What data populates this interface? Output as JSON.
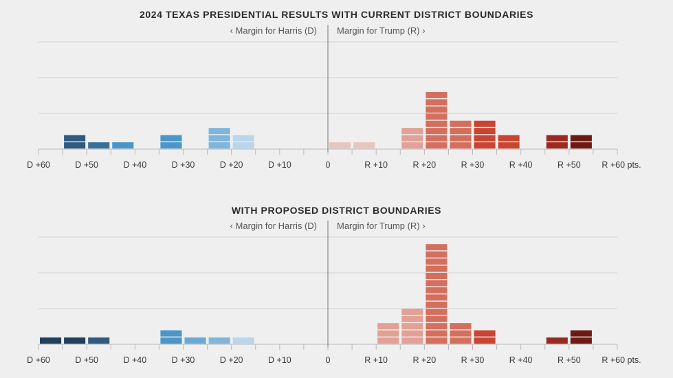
{
  "colors": {
    "background": "#efefef",
    "grid": "#d0d0d0",
    "axis": "#b8b8b8",
    "divider": "#777777",
    "dem": [
      "#1f3f5e",
      "#2e5a80",
      "#4a96c8",
      "#7fb5dc",
      "#b8d6ec"
    ],
    "rep": [
      "#e7c6c0",
      "#e2a196",
      "#d46f5e",
      "#c94531",
      "#9a2a1f",
      "#6e1a14"
    ]
  },
  "chart_data": [
    {
      "type": "bar",
      "title": "2024 TEXAS PRESIDENTIAL RESULTS WITH CURRENT DISTRICT BOUNDARIES",
      "left_label": "‹ Margin for Harris (D)",
      "right_label": "Margin for Trump (R) ›",
      "xlim": [
        -60,
        60
      ],
      "ticks": [
        {
          "value": -60,
          "label": "D +60"
        },
        {
          "value": -50,
          "label": "D +50"
        },
        {
          "value": -40,
          "label": "D +40"
        },
        {
          "value": -30,
          "label": "D +30"
        },
        {
          "value": -20,
          "label": "D +20"
        },
        {
          "value": -10,
          "label": "D +10"
        },
        {
          "value": 0,
          "label": "0"
        },
        {
          "value": 10,
          "label": "R +10"
        },
        {
          "value": 20,
          "label": "R +20"
        },
        {
          "value": 30,
          "label": "R +30"
        },
        {
          "value": 40,
          "label": "R +40"
        },
        {
          "value": 50,
          "label": "R +50"
        },
        {
          "value": 60,
          "label": "R +60 pts."
        }
      ],
      "bins": [
        {
          "x": -52.5,
          "count": 2,
          "color": "#2e5a80"
        },
        {
          "x": -47.5,
          "count": 1,
          "color": "#3b6f98"
        },
        {
          "x": -42.5,
          "count": 1,
          "color": "#4a96c8"
        },
        {
          "x": -32.5,
          "count": 2,
          "color": "#4a96c8"
        },
        {
          "x": -22.5,
          "count": 3,
          "color": "#7fb5dc"
        },
        {
          "x": -17.5,
          "count": 2,
          "color": "#b8d6ec"
        },
        {
          "x": 2.5,
          "count": 1,
          "color": "#e7c6c0"
        },
        {
          "x": 7.5,
          "count": 1,
          "color": "#e7c6c0"
        },
        {
          "x": 17.5,
          "count": 3,
          "color": "#e2a196"
        },
        {
          "x": 22.5,
          "count": 8,
          "color": "#d46f5e"
        },
        {
          "x": 27.5,
          "count": 4,
          "color": "#d46f5e"
        },
        {
          "x": 32.5,
          "count": 4,
          "color": "#c94531"
        },
        {
          "x": 37.5,
          "count": 2,
          "color": "#c94531"
        },
        {
          "x": 47.5,
          "count": 2,
          "color": "#9a2a1f"
        },
        {
          "x": 52.5,
          "count": 2,
          "color": "#6e1a14"
        }
      ]
    },
    {
      "type": "bar",
      "title": "WITH PROPOSED DISTRICT BOUNDARIES",
      "left_label": "‹ Margin for Harris (D)",
      "right_label": "Margin for Trump (R) ›",
      "xlim": [
        -60,
        60
      ],
      "ticks": [
        {
          "value": -60,
          "label": "D +60"
        },
        {
          "value": -50,
          "label": "D +50"
        },
        {
          "value": -40,
          "label": "D +40"
        },
        {
          "value": -30,
          "label": "D +30"
        },
        {
          "value": -20,
          "label": "D +20"
        },
        {
          "value": -10,
          "label": "D +10"
        },
        {
          "value": 0,
          "label": "0"
        },
        {
          "value": 10,
          "label": "R +10"
        },
        {
          "value": 20,
          "label": "R +20"
        },
        {
          "value": 30,
          "label": "R +30"
        },
        {
          "value": 40,
          "label": "R +40"
        },
        {
          "value": 50,
          "label": "R +50"
        },
        {
          "value": 60,
          "label": "R +60 pts."
        }
      ],
      "bins": [
        {
          "x": -57.5,
          "count": 1,
          "color": "#1f3f5e"
        },
        {
          "x": -52.5,
          "count": 1,
          "color": "#1f3f5e"
        },
        {
          "x": -47.5,
          "count": 1,
          "color": "#2e5a80"
        },
        {
          "x": -32.5,
          "count": 2,
          "color": "#4a96c8"
        },
        {
          "x": -27.5,
          "count": 1,
          "color": "#6aa8d6"
        },
        {
          "x": -22.5,
          "count": 1,
          "color": "#7fb5dc"
        },
        {
          "x": -17.5,
          "count": 1,
          "color": "#b8d6ec"
        },
        {
          "x": 12.5,
          "count": 3,
          "color": "#e2a196"
        },
        {
          "x": 17.5,
          "count": 5,
          "color": "#e2a196"
        },
        {
          "x": 22.5,
          "count": 14,
          "color": "#d46f5e"
        },
        {
          "x": 27.5,
          "count": 3,
          "color": "#d46f5e"
        },
        {
          "x": 32.5,
          "count": 2,
          "color": "#c94531"
        },
        {
          "x": 47.5,
          "count": 1,
          "color": "#9a2a1f"
        },
        {
          "x": 52.5,
          "count": 2,
          "color": "#6e1a14"
        }
      ]
    }
  ]
}
